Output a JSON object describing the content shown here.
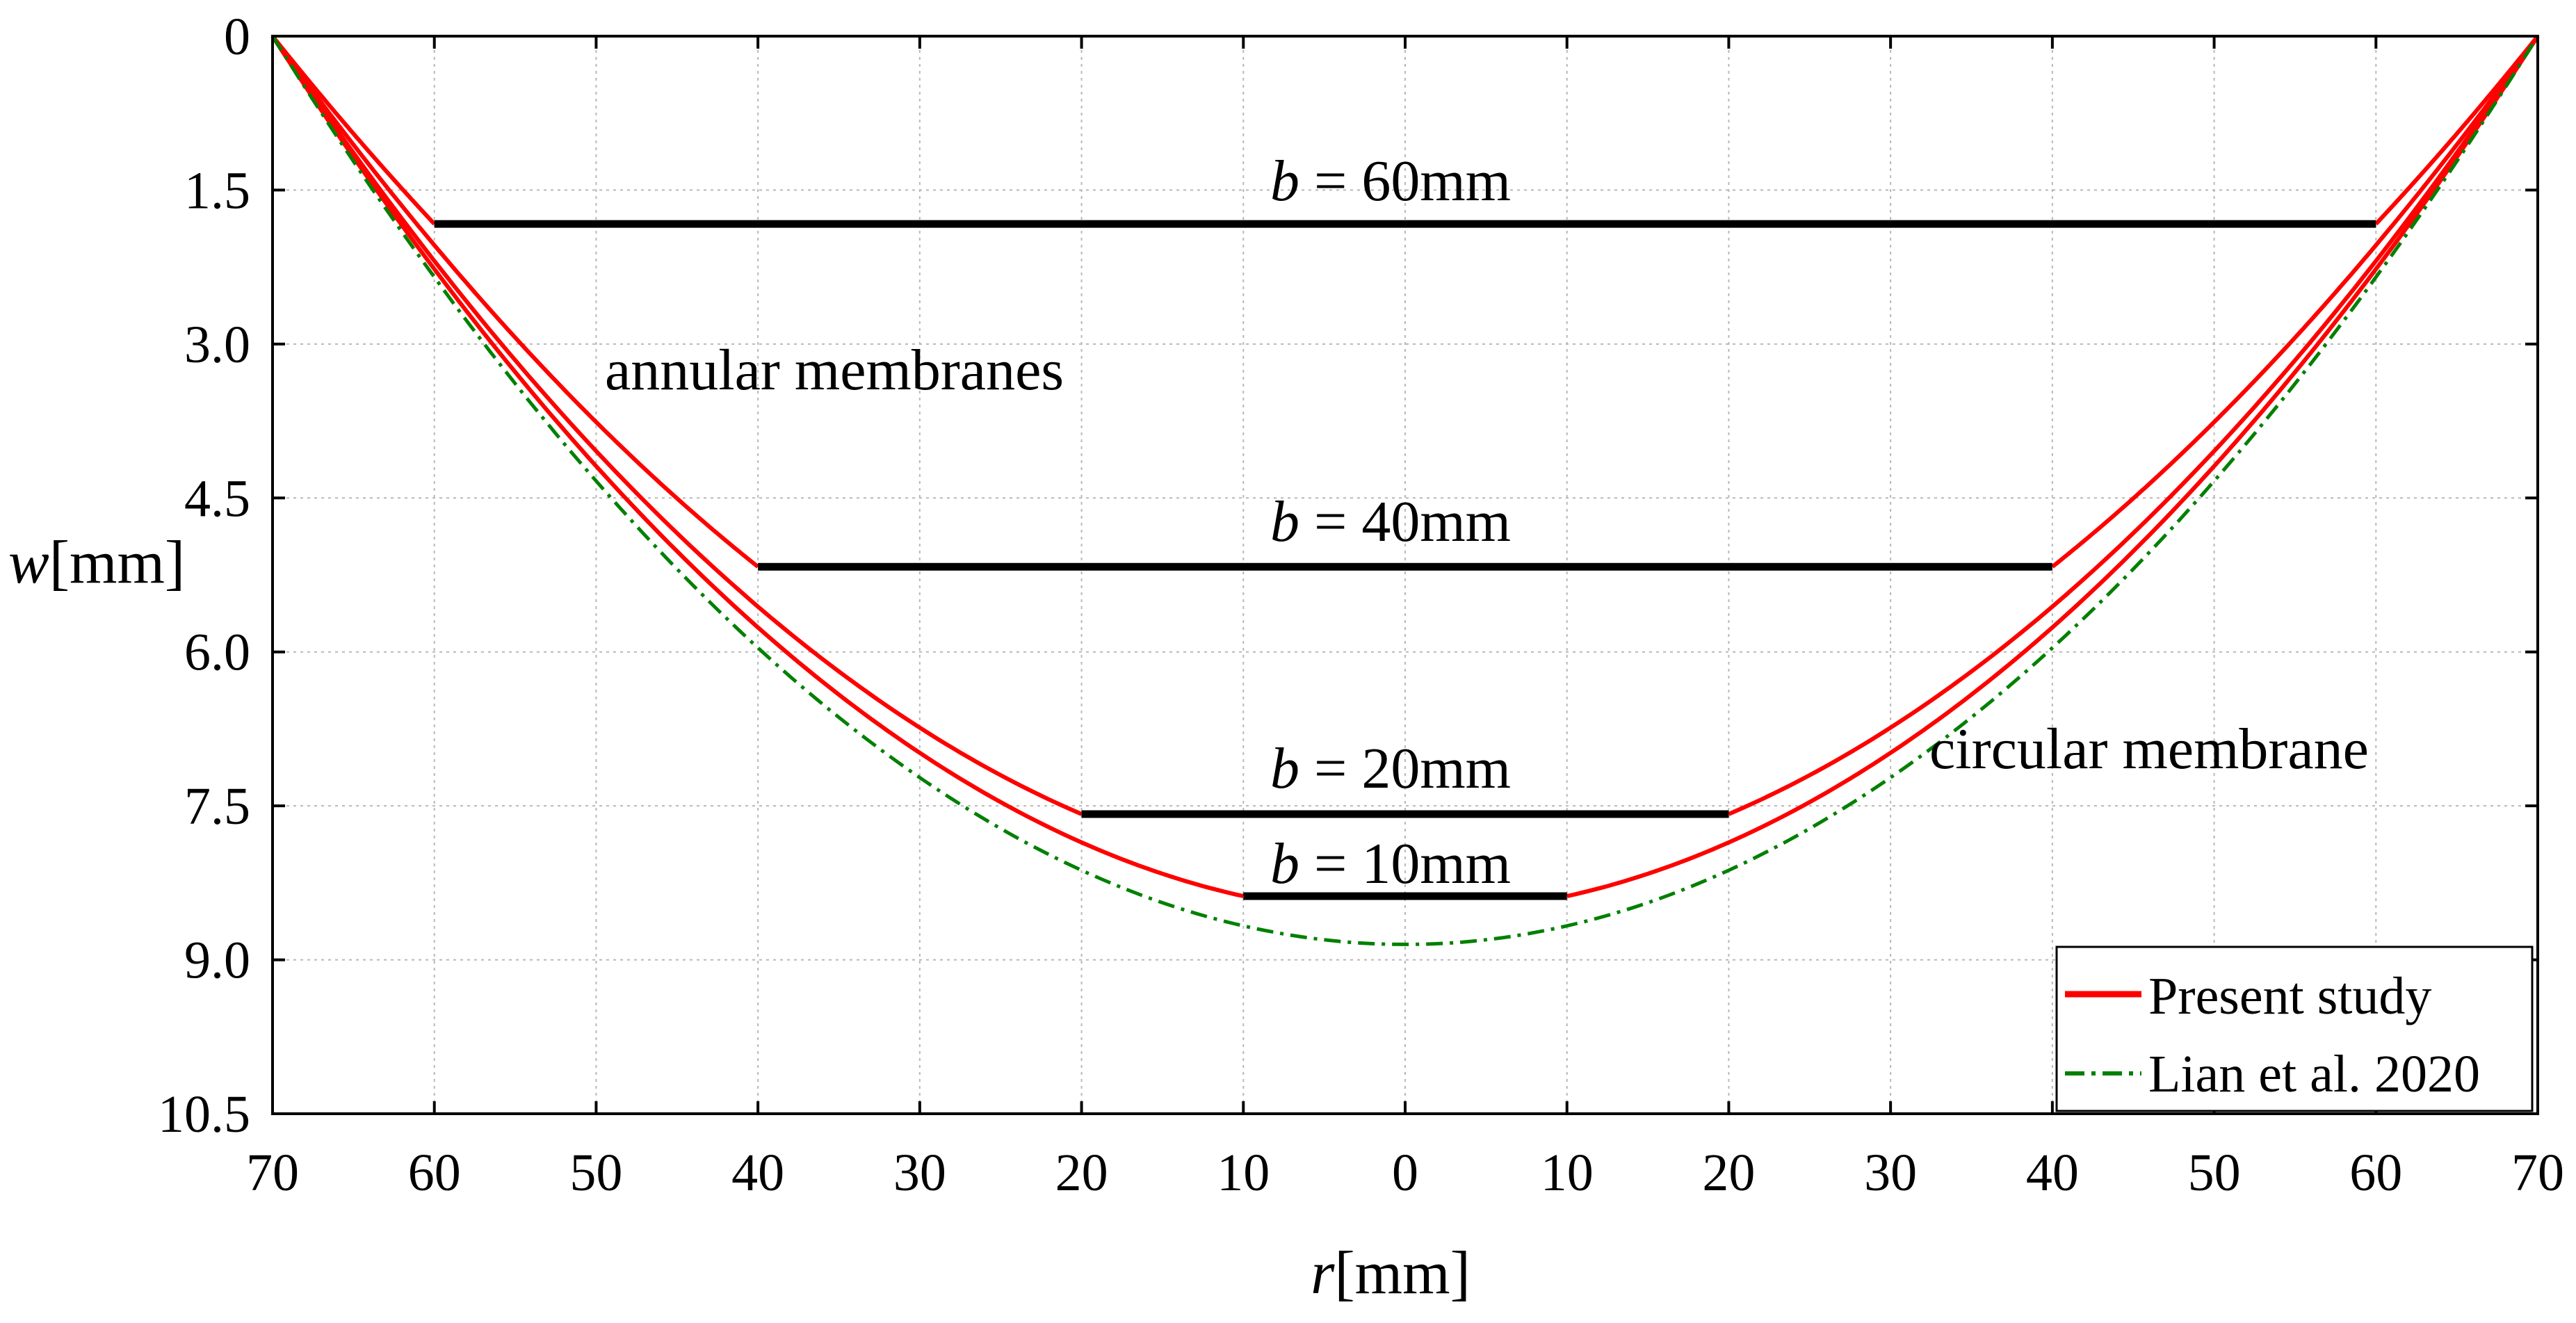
{
  "chart_data": {
    "type": "line",
    "title": "",
    "xlabel": {
      "var": "r",
      "unit": "[mm]"
    },
    "ylabel": {
      "var": "w",
      "unit": "[mm]"
    },
    "x_range": [
      -70,
      70
    ],
    "y_range": [
      0,
      10.5
    ],
    "y_inverted": true,
    "grid": true,
    "x_ticks": [
      {
        "value": -70,
        "label": "70"
      },
      {
        "value": -60,
        "label": "60"
      },
      {
        "value": -50,
        "label": "50"
      },
      {
        "value": -40,
        "label": "40"
      },
      {
        "value": -30,
        "label": "30"
      },
      {
        "value": -20,
        "label": "20"
      },
      {
        "value": -10,
        "label": "10"
      },
      {
        "value": 0,
        "label": "0"
      },
      {
        "value": 10,
        "label": "10"
      },
      {
        "value": 20,
        "label": "20"
      },
      {
        "value": 30,
        "label": "30"
      },
      {
        "value": 40,
        "label": "40"
      },
      {
        "value": 50,
        "label": "50"
      },
      {
        "value": 60,
        "label": "60"
      },
      {
        "value": 70,
        "label": "70"
      }
    ],
    "y_ticks": [
      {
        "value": 0,
        "label": "0"
      },
      {
        "value": 1.5,
        "label": "1.5"
      },
      {
        "value": 3.0,
        "label": "3.0"
      },
      {
        "value": 4.5,
        "label": "4.5"
      },
      {
        "value": 6.0,
        "label": "6.0"
      },
      {
        "value": 7.5,
        "label": "7.5"
      },
      {
        "value": 9.0,
        "label": "9.0"
      },
      {
        "value": 10.5,
        "label": "10.5"
      }
    ],
    "series": [
      {
        "name": "Present study",
        "color": "#ff0000",
        "style": "solid",
        "b": 60,
        "w_inner": 1.83
      },
      {
        "name": "Present study",
        "color": "#ff0000",
        "style": "solid",
        "b": 40,
        "w_inner": 5.17
      },
      {
        "name": "Present study",
        "color": "#ff0000",
        "style": "solid",
        "b": 20,
        "w_inner": 7.58
      },
      {
        "name": "Present study",
        "color": "#ff0000",
        "style": "solid",
        "b": 10,
        "w_inner": 8.38
      },
      {
        "name": "Lian et al. 2020",
        "color": "#008000",
        "style": "dash-dot",
        "b": 0,
        "w_inner": 8.85
      }
    ],
    "rigid_plates": [
      {
        "b": 60,
        "w": 1.83,
        "label": "b = 60mm"
      },
      {
        "b": 40,
        "w": 5.17,
        "label": "b = 40mm"
      },
      {
        "b": 20,
        "w": 7.58,
        "label": "b = 20mm"
      },
      {
        "b": 10,
        "w": 8.38,
        "label": "b = 10mm"
      }
    ],
    "annotations": [
      {
        "text": "annular membranes",
        "r": -39,
        "w": 3.3
      },
      {
        "text": "circular membrane",
        "r": 48,
        "w": 7.05
      }
    ],
    "legend": {
      "position": "bottom-right",
      "entries": [
        {
          "label": "Present study",
          "color": "#ff0000",
          "style": "solid"
        },
        {
          "label": "Lian et al. 2020",
          "color": "#008000",
          "style": "dash-dot"
        }
      ]
    }
  }
}
